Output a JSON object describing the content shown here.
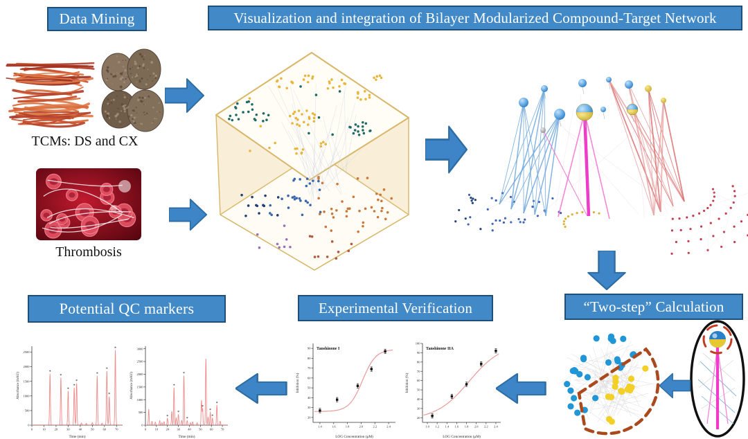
{
  "banners": {
    "data_mining": "Data Mining",
    "visualization": "Visualization and integration of Bilayer Modularized Compound-Target Network",
    "qc_markers": "Potential QC markers",
    "experimental": "Experimental Verification",
    "two_step": "“Two-step” Calculation"
  },
  "labels": {
    "tcms": "TCMs: DS and CX",
    "thrombosis": "Thrombosis"
  },
  "colors": {
    "banner_blue": "#4189c7",
    "banner_border": "#1f4e79",
    "arrow_blue": "#3d85c6",
    "arrow_border": "#2e6da4",
    "magenta": "#ee3cc8",
    "wedge_dash": "#a9491c",
    "module_blue": "#2196d6",
    "module_yellow": "#f3d028",
    "chromatogram_line": "#ef8a8a",
    "dose_curve": "#e89a9a",
    "box_beige": "#f9efd8",
    "box_border": "#d8b768"
  },
  "chart_data": [
    {
      "id": "chrom-left",
      "type": "line",
      "title": "",
      "xlabel": "Time (min)",
      "ylabel": "Absorbance (mAU)",
      "xlim": [
        0,
        75
      ],
      "ylim": [
        0,
        2700
      ],
      "xticks": [
        0,
        10,
        20,
        30,
        40,
        50,
        60,
        70
      ],
      "yticks": [
        0,
        500,
        1000,
        1500,
        2000,
        2500
      ],
      "peaks": [
        [
          15,
          1750,
          1
        ],
        [
          24,
          1620,
          1
        ],
        [
          30,
          1160,
          1
        ],
        [
          35,
          1280,
          1
        ],
        [
          37,
          1430,
          1
        ],
        [
          41,
          70,
          0
        ],
        [
          45,
          55,
          0
        ],
        [
          50,
          80,
          0
        ],
        [
          54,
          1680,
          1
        ],
        [
          58,
          60,
          0
        ],
        [
          62,
          1850,
          1
        ],
        [
          64,
          980,
          1
        ],
        [
          69,
          2560,
          1
        ]
      ]
    },
    {
      "id": "chrom-right",
      "type": "line",
      "title": "",
      "xlabel": "Time (min)",
      "ylabel": "Absorbance (mAU)",
      "xlim": [
        0,
        75
      ],
      "ylim": [
        0,
        3100
      ],
      "xticks": [
        0,
        10,
        20,
        30,
        40,
        50,
        60,
        70
      ],
      "yticks": [
        0,
        500,
        1000,
        1500,
        2000,
        2500,
        3000
      ],
      "peaks": [
        [
          3,
          620,
          0
        ],
        [
          6,
          140,
          0
        ],
        [
          9,
          110,
          0
        ],
        [
          13,
          170,
          0
        ],
        [
          15,
          90,
          0
        ],
        [
          17,
          130,
          0
        ],
        [
          20,
          260,
          1
        ],
        [
          24,
          540,
          0
        ],
        [
          26,
          1470,
          1
        ],
        [
          28,
          280,
          0
        ],
        [
          30,
          420,
          1
        ],
        [
          33,
          180,
          0
        ],
        [
          35,
          1950,
          1
        ],
        [
          38,
          170,
          1
        ],
        [
          41,
          90,
          0
        ],
        [
          43,
          120,
          0
        ],
        [
          47,
          90,
          0
        ],
        [
          51,
          960,
          0
        ],
        [
          52,
          640,
          1
        ],
        [
          55,
          2620,
          0
        ],
        [
          57,
          300,
          0
        ],
        [
          59,
          500,
          1
        ],
        [
          61,
          270,
          1
        ],
        [
          65,
          780,
          1
        ],
        [
          68,
          150,
          0
        ]
      ]
    },
    {
      "id": "dose-left",
      "type": "scatter",
      "title": "Tanshinone I",
      "xlabel": "LOG Concentration (μM)",
      "ylabel": "Inhibition (%)",
      "xlim": [
        1.3,
        2.5
      ],
      "ylim": [
        15,
        95
      ],
      "xticks": [
        1.4,
        1.6,
        1.8,
        2.0,
        2.2,
        2.4
      ],
      "yticks": [
        20,
        30,
        40,
        50,
        60,
        70,
        80,
        90
      ],
      "points": [
        [
          1.4,
          27
        ],
        [
          1.65,
          38
        ],
        [
          1.95,
          52
        ],
        [
          2.15,
          69
        ],
        [
          2.35,
          87
        ]
      ],
      "curve": {
        "bottom": 26,
        "top": 89,
        "logec50": 2.02,
        "hill": 4.5
      }
    },
    {
      "id": "dose-right",
      "type": "scatter",
      "title": "Tanshinone IIA",
      "xlabel": "LOG Concentration (μM)",
      "ylabel": "Inhibition (%)",
      "xlim": [
        0.9,
        2.5
      ],
      "ylim": [
        15,
        100
      ],
      "xticks": [
        1.0,
        1.2,
        1.4,
        1.6,
        1.8,
        2.0,
        2.2,
        2.4
      ],
      "yticks": [
        20,
        30,
        40,
        50,
        60,
        70,
        80,
        90,
        100
      ],
      "points": [
        [
          1.1,
          22
        ],
        [
          1.5,
          43
        ],
        [
          1.8,
          56
        ],
        [
          2.1,
          78
        ],
        [
          2.4,
          92
        ]
      ],
      "curve": {
        "bottom": 18,
        "top": 100,
        "logec50": 1.85,
        "hill": 1.3
      }
    }
  ]
}
